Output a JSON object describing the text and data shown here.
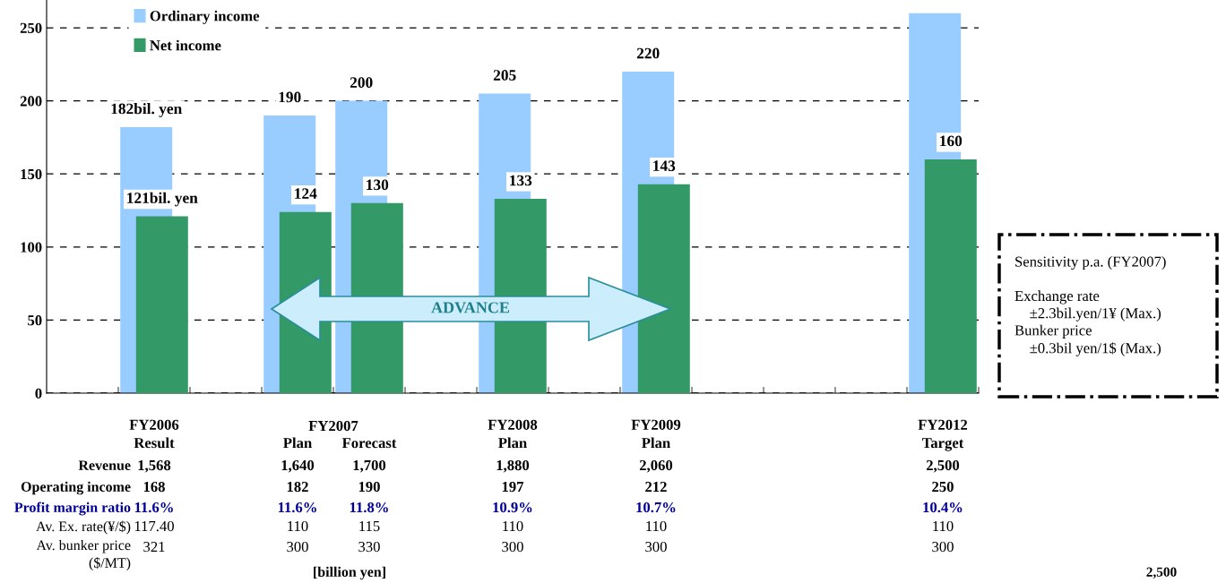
{
  "chart_data": {
    "type": "bar",
    "categories": [
      null,
      "FY2006\nResult",
      null,
      "Plan",
      "Forecast",
      null,
      "FY2008\nPlan",
      null,
      "FY2009\nPlan",
      null,
      null,
      null,
      "FY2012\nTarget"
    ],
    "series": [
      {
        "name": "Ordinary income",
        "color": "#99ccff",
        "values": [
          null,
          182,
          null,
          190,
          200,
          null,
          205,
          null,
          220,
          null,
          null,
          null,
          260
        ],
        "value_labels": [
          null,
          "182bil. yen",
          null,
          "190",
          "200",
          null,
          "205",
          null,
          "220",
          null,
          null,
          null,
          null
        ]
      },
      {
        "name": "Net income",
        "color": "#339966",
        "values": [
          null,
          121,
          null,
          124,
          130,
          null,
          133,
          null,
          143,
          null,
          null,
          null,
          160
        ],
        "value_labels": [
          null,
          "121bil. yen",
          null,
          "124",
          "130",
          null,
          "133",
          null,
          "143",
          null,
          null,
          null,
          "160"
        ]
      }
    ],
    "ylim": [
      0,
      269
    ],
    "yticks": [
      0,
      50,
      100,
      150,
      200,
      250
    ],
    "grid": "y",
    "legend": "top left",
    "annotations": [
      "FY2007",
      "Revenue",
      "Operating income",
      "Profit margin ratio",
      "Av. Ex. rate(¥/$)",
      "Av. bunker price\n($/MT)",
      "1,568",
      "168",
      "11.6%",
      "117.40",
      "321",
      "1,640",
      "182",
      "11.6%",
      "110",
      "300",
      "1,700",
      "190",
      "11.8%",
      "115",
      "330",
      "1,880",
      "197",
      "10.9%",
      "110",
      "300",
      "2,060",
      "212",
      "10.7%",
      "110",
      "300",
      "2,500",
      "250",
      "10.4%",
      "110",
      "300",
      "[billion yen]",
      "Sensitivity p.a. (FY2007)\n\nExchange rate\n    ±2.3bil.yen/1¥ (Max.)\nBunker price\n    ±0.3bil yen/1$ (Max.)",
      "ADVANCE",
      "2,500"
    ]
  }
}
